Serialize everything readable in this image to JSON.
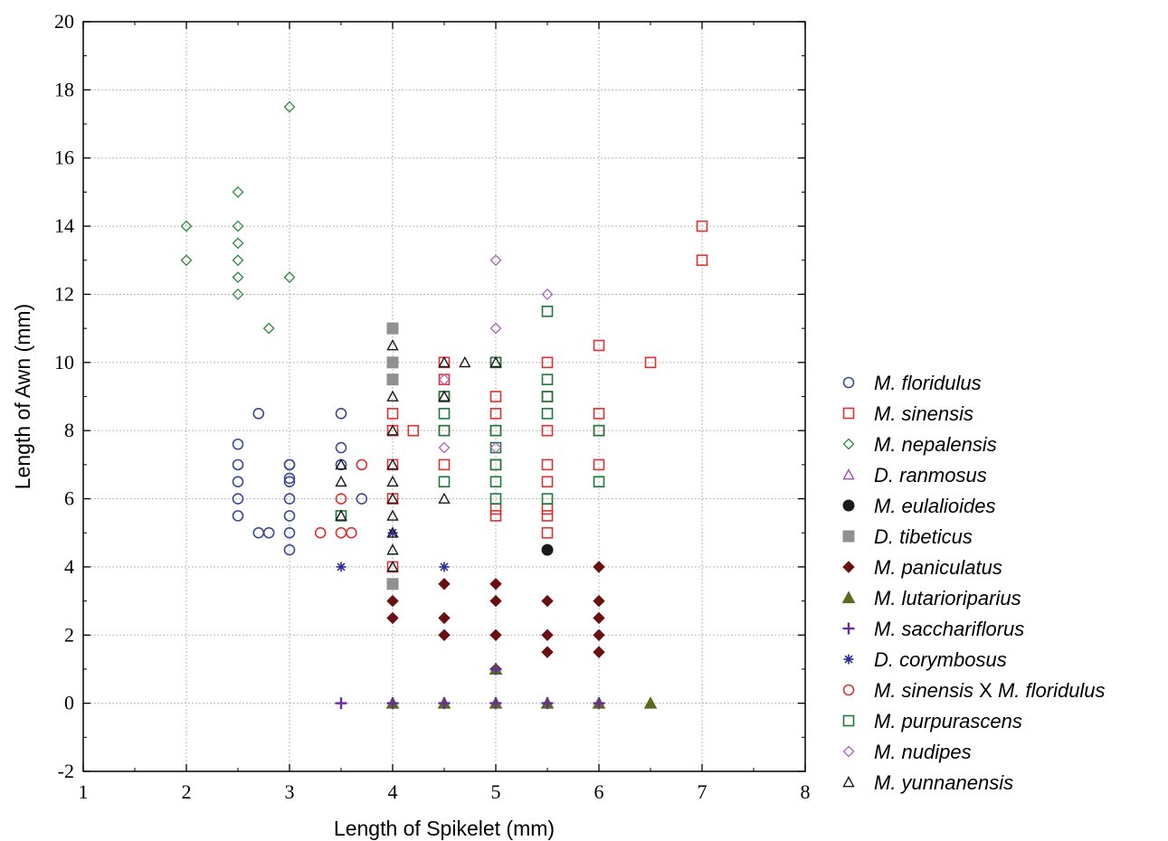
{
  "chart_data": {
    "type": "scatter",
    "xlabel": "Length of Spikelet  (mm)",
    "ylabel": "Length of Awn (mm)",
    "xlim": [
      1,
      8
    ],
    "ylim": [
      -2,
      20
    ],
    "xticks": [
      1,
      2,
      3,
      4,
      5,
      6,
      7,
      8
    ],
    "yticks": [
      -2,
      0,
      2,
      4,
      6,
      8,
      10,
      12,
      14,
      16,
      18,
      20
    ],
    "grid": true,
    "legend_position": "right",
    "series": [
      {
        "name": "M. floridulus",
        "marker": "circle-open",
        "color": "#3a4a9a",
        "points": [
          [
            2.5,
            5.5
          ],
          [
            2.5,
            6
          ],
          [
            2.5,
            6.5
          ],
          [
            2.5,
            7
          ],
          [
            2.5,
            7.6
          ],
          [
            2.7,
            8.5
          ],
          [
            2.7,
            5
          ],
          [
            2.8,
            5
          ],
          [
            3,
            4.5
          ],
          [
            3,
            5
          ],
          [
            3,
            5.5
          ],
          [
            3,
            6
          ],
          [
            3,
            6.5
          ],
          [
            3,
            6.6
          ],
          [
            3,
            7
          ],
          [
            3,
            7
          ],
          [
            3.5,
            8.5
          ],
          [
            3.5,
            7.5
          ],
          [
            3.5,
            7
          ],
          [
            3.7,
            6
          ]
        ]
      },
      {
        "name": "M. sinensis",
        "marker": "square-open",
        "color": "#e03030",
        "points": [
          [
            4,
            4
          ],
          [
            4,
            6
          ],
          [
            4,
            7
          ],
          [
            4,
            8
          ],
          [
            4,
            8.5
          ],
          [
            4.2,
            8
          ],
          [
            4.5,
            7
          ],
          [
            4.5,
            8
          ],
          [
            4.5,
            9
          ],
          [
            4.5,
            9.5
          ],
          [
            4.5,
            10
          ],
          [
            5,
            5.5
          ],
          [
            5,
            5.7
          ],
          [
            5,
            7
          ],
          [
            5,
            8
          ],
          [
            5,
            8.5
          ],
          [
            5,
            9
          ],
          [
            5,
            10
          ],
          [
            5.5,
            5
          ],
          [
            5.5,
            5.5
          ],
          [
            5.5,
            5.7
          ],
          [
            5.5,
            6.5
          ],
          [
            5.5,
            7
          ],
          [
            5.5,
            8
          ],
          [
            5.5,
            9
          ],
          [
            5.5,
            10
          ],
          [
            6,
            7
          ],
          [
            6,
            8
          ],
          [
            6,
            8.5
          ],
          [
            6,
            10.5
          ],
          [
            6.5,
            10
          ],
          [
            7,
            13
          ],
          [
            7,
            14
          ]
        ]
      },
      {
        "name": "M. nepalensis",
        "marker": "diamond-open",
        "color": "#2a8a3a",
        "points": [
          [
            2,
            13
          ],
          [
            2,
            14
          ],
          [
            2.5,
            12
          ],
          [
            2.5,
            12.5
          ],
          [
            2.5,
            13
          ],
          [
            2.5,
            13.5
          ],
          [
            2.5,
            14
          ],
          [
            2.5,
            15
          ],
          [
            2.8,
            11
          ],
          [
            3,
            12.5
          ],
          [
            3,
            17.5
          ]
        ]
      },
      {
        "name": "D. ranmosus",
        "marker": "triangle-open",
        "color": "#a050b0",
        "points": [
          [
            5,
            1
          ]
        ]
      },
      {
        "name": "M. eulalioides",
        "marker": "circle-filled",
        "color": "#1a1a1a",
        "points": [
          [
            5.5,
            4.5
          ]
        ]
      },
      {
        "name": "D. tibeticus",
        "marker": "square-filled",
        "color": "#909090",
        "points": [
          [
            4,
            3.5
          ],
          [
            4,
            9.5
          ],
          [
            4,
            10
          ],
          [
            4,
            11
          ]
        ]
      },
      {
        "name": "M. paniculatus",
        "marker": "diamond-filled",
        "color": "#6a1010",
        "points": [
          [
            4,
            2.5
          ],
          [
            4,
            3
          ],
          [
            4.5,
            2
          ],
          [
            4.5,
            2.5
          ],
          [
            4.5,
            3.5
          ],
          [
            5,
            1
          ],
          [
            5,
            2
          ],
          [
            5,
            3
          ],
          [
            5,
            3.5
          ],
          [
            5.5,
            1.5
          ],
          [
            5.5,
            2
          ],
          [
            5.5,
            3
          ],
          [
            6,
            1.5
          ],
          [
            6,
            2
          ],
          [
            6,
            2.5
          ],
          [
            6,
            3
          ],
          [
            6,
            4
          ]
        ]
      },
      {
        "name": "M. lutarioriparius",
        "marker": "triangle-filled",
        "color": "#5a6a20",
        "points": [
          [
            6.5,
            0
          ],
          [
            4,
            0
          ],
          [
            4.5,
            0
          ],
          [
            5,
            0
          ],
          [
            5.5,
            0
          ],
          [
            6,
            0
          ],
          [
            5,
            1
          ]
        ]
      },
      {
        "name": "M. sacchariflorus",
        "marker": "plus",
        "color": "#6a2aa0",
        "points": [
          [
            3.5,
            0
          ],
          [
            4,
            0
          ],
          [
            4.5,
            0
          ],
          [
            5,
            0
          ],
          [
            5.5,
            0
          ],
          [
            6,
            0
          ],
          [
            5,
            1
          ]
        ]
      },
      {
        "name": "D. corymbosus",
        "marker": "asterisk",
        "color": "#2a2a9a",
        "points": [
          [
            3.5,
            4
          ],
          [
            4,
            5
          ],
          [
            4.5,
            4
          ]
        ]
      },
      {
        "name": "M. sinensis X M. floridulus",
        "marker": "circle-open",
        "color": "#e03030",
        "points": [
          [
            3.3,
            5
          ],
          [
            3.5,
            5
          ],
          [
            3.5,
            6
          ],
          [
            3.6,
            5
          ],
          [
            3.7,
            7
          ]
        ]
      },
      {
        "name": "M. purpurascens",
        "marker": "square-open",
        "color": "#1a7a3a",
        "points": [
          [
            4.5,
            6.5
          ],
          [
            4.5,
            8
          ],
          [
            4.5,
            8.5
          ],
          [
            4.5,
            9
          ],
          [
            5,
            6
          ],
          [
            5,
            6.5
          ],
          [
            5,
            7
          ],
          [
            5,
            7.5
          ],
          [
            5,
            8
          ],
          [
            5,
            10
          ],
          [
            5.5,
            6
          ],
          [
            5.5,
            8.5
          ],
          [
            5.5,
            9
          ],
          [
            5.5,
            9.5
          ],
          [
            5.5,
            11.5
          ],
          [
            6,
            6.5
          ],
          [
            6,
            8
          ],
          [
            3.5,
            5.5
          ]
        ]
      },
      {
        "name": "M. nudipes",
        "marker": "diamond-open",
        "color": "#b060c0",
        "points": [
          [
            4.5,
            7.5
          ],
          [
            4.5,
            9.5
          ],
          [
            5,
            7.5
          ],
          [
            5,
            11
          ],
          [
            5,
            13
          ],
          [
            5.5,
            12
          ]
        ]
      },
      {
        "name": "M. yunnanensis",
        "marker": "triangle-open",
        "color": "#1a1a1a",
        "points": [
          [
            3.5,
            5.5
          ],
          [
            3.5,
            6.5
          ],
          [
            3.5,
            7
          ],
          [
            4,
            4
          ],
          [
            4,
            4.5
          ],
          [
            4,
            5
          ],
          [
            4,
            5.5
          ],
          [
            4,
            6
          ],
          [
            4,
            6.5
          ],
          [
            4,
            7
          ],
          [
            4,
            8
          ],
          [
            4,
            9
          ],
          [
            4,
            10.5
          ],
          [
            4.5,
            6
          ],
          [
            4.5,
            9
          ],
          [
            4.5,
            10
          ],
          [
            4.7,
            10
          ],
          [
            5,
            10
          ]
        ]
      }
    ]
  }
}
